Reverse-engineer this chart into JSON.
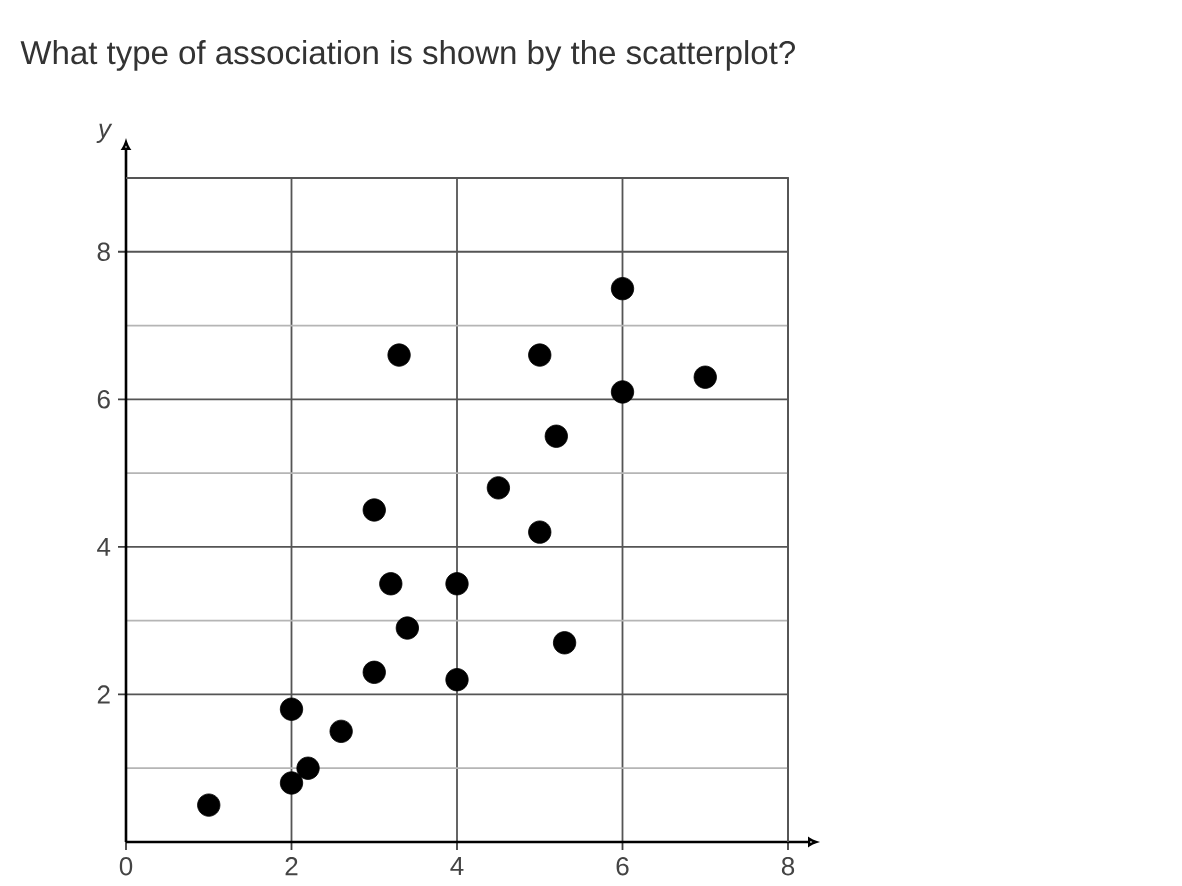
{
  "chart_data": {
    "type": "scatter",
    "title": "What type of association is shown by the scatterplot?",
    "ylabel": "y",
    "x": [
      1.0,
      2.0,
      2.2,
      2.0,
      2.6,
      3.0,
      3.0,
      3.2,
      3.3,
      3.4,
      4.0,
      4.0,
      4.5,
      5.0,
      5.0,
      5.2,
      5.3,
      6.0,
      6.0,
      7.0
    ],
    "values": [
      0.5,
      0.8,
      1.0,
      1.8,
      1.5,
      2.3,
      4.5,
      3.5,
      6.6,
      2.9,
      3.5,
      2.2,
      4.8,
      6.6,
      4.2,
      5.5,
      2.7,
      7.5,
      6.1,
      6.3
    ],
    "color": "#000000",
    "marker": "circle",
    "xlim": [
      0,
      8
    ],
    "ylim": [
      0,
      9
    ],
    "xticks": [
      0,
      2,
      4,
      6,
      8
    ],
    "yticks": [
      2,
      4,
      6,
      8
    ],
    "grid": true
  }
}
